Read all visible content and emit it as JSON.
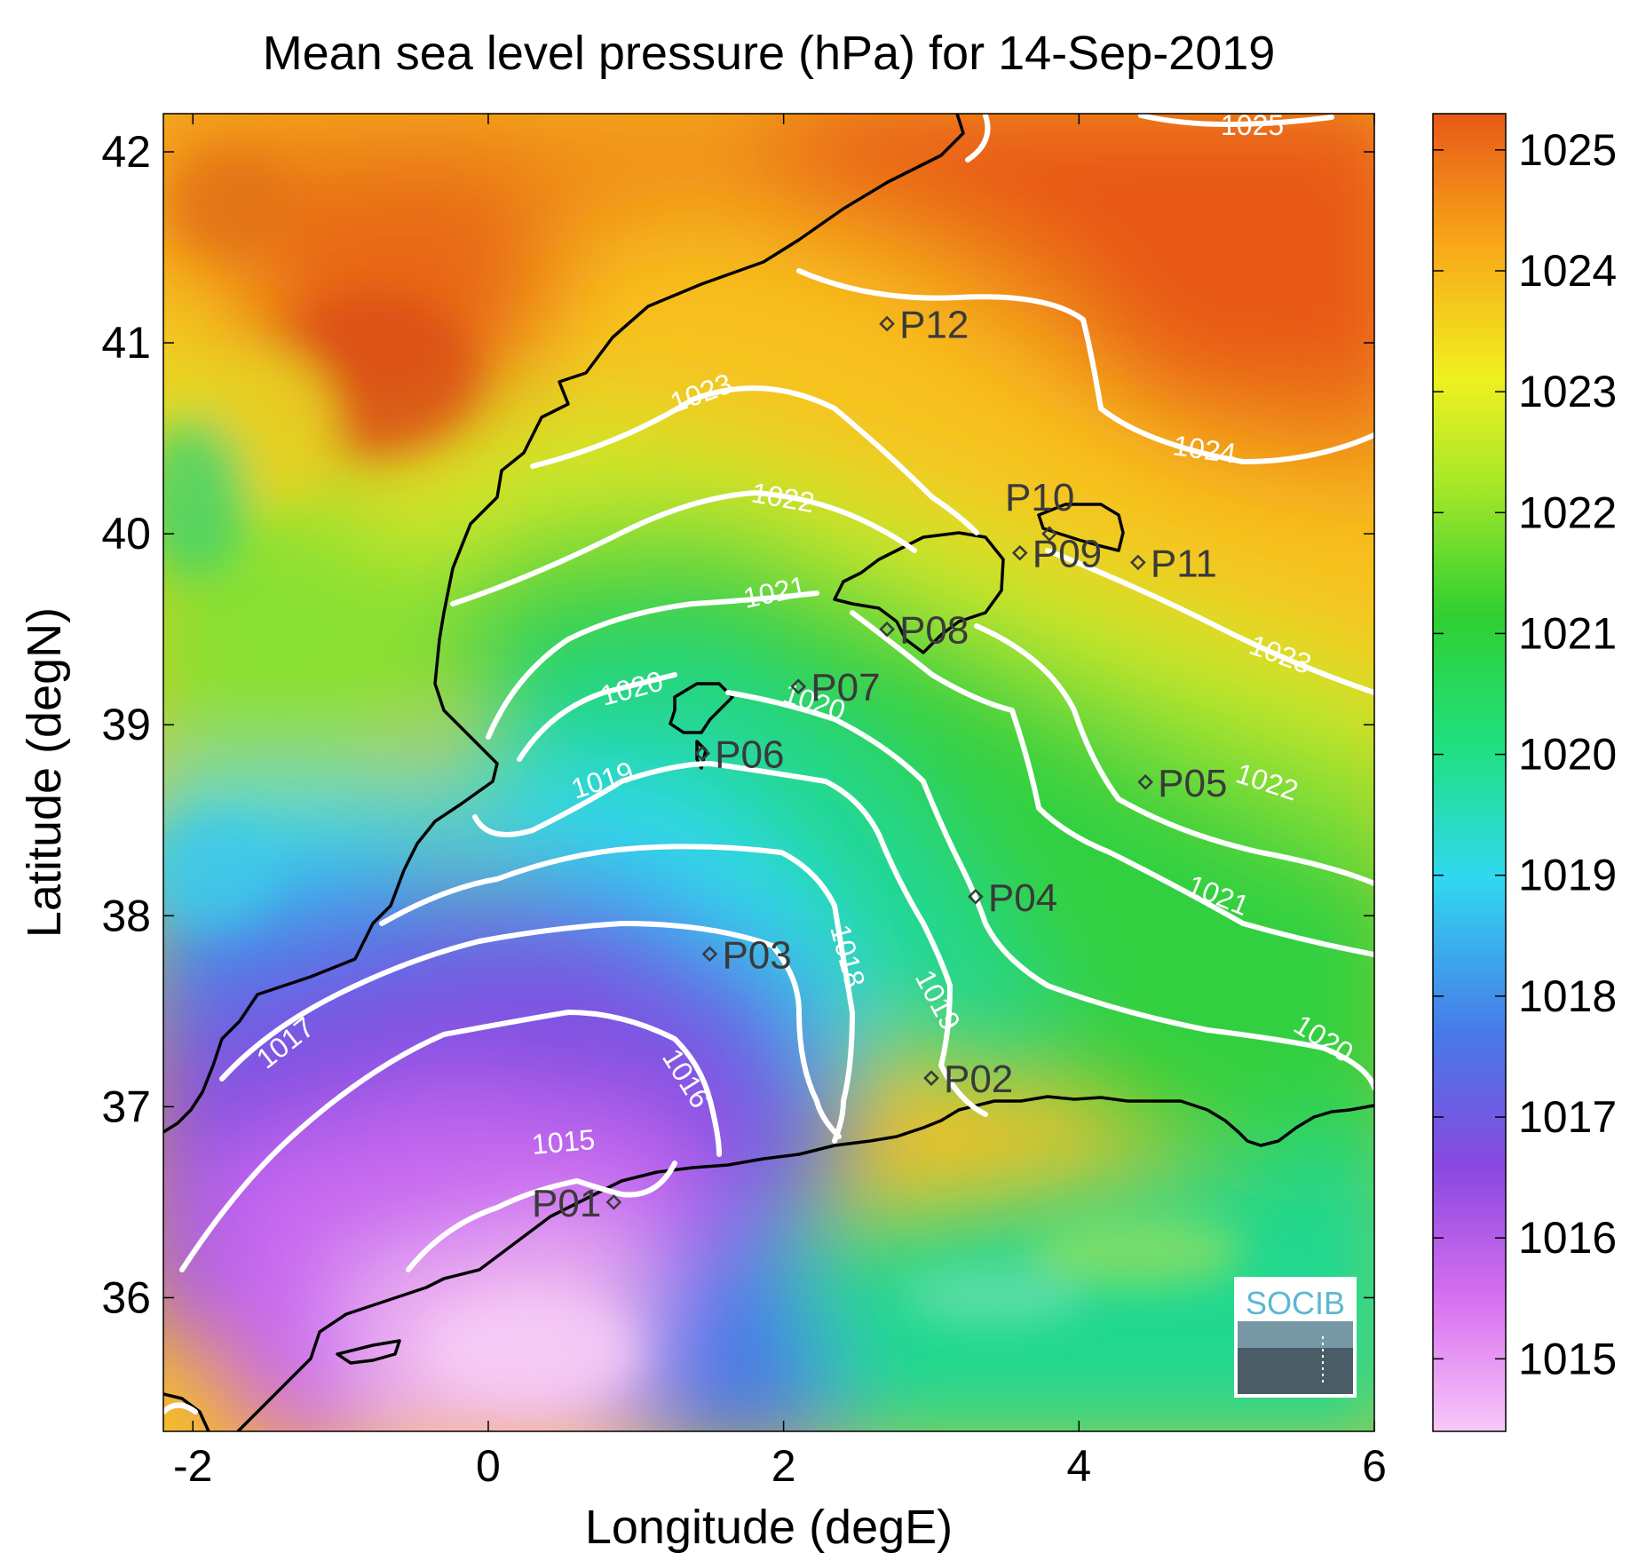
{
  "title": "Mean sea level pressure (hPa) for 14-Sep-2019",
  "xlabel": "Longitude (degE)",
  "ylabel": "Latitude (degN)",
  "x_ticks": [
    "-2",
    "0",
    "2",
    "4",
    "6"
  ],
  "y_ticks": [
    "42",
    "41",
    "40",
    "39",
    "38",
    "37",
    "36"
  ],
  "colorbar_ticks": [
    "1025",
    "1024",
    "1023",
    "1022",
    "1021",
    "1020",
    "1019",
    "1018",
    "1017",
    "1016",
    "1015"
  ],
  "logo_text": "SOCIB",
  "colors": {
    "contour": "#ffffff",
    "coast": "#000000",
    "station": "#3a3a3a"
  },
  "chart_data": {
    "type": "heatmap",
    "title": "Mean sea level pressure (hPa) for 14-Sep-2019",
    "xlabel": "Longitude (degE)",
    "ylabel": "Latitude (degN)",
    "xlim": [
      -2.2,
      6.0
    ],
    "ylim": [
      35.3,
      42.2
    ],
    "colorbar_range": [
      1014.4,
      1025.3
    ],
    "colormap": [
      "#f8c8f8",
      "#d870f0",
      "#8a48e0",
      "#4878e8",
      "#30d8f0",
      "#20e080",
      "#30d030",
      "#a8e828",
      "#f0f020",
      "#f8a818",
      "#e85818"
    ],
    "contour_levels": [
      1015,
      1016,
      1017,
      1018,
      1019,
      1020,
      1021,
      1022,
      1023,
      1024,
      1025
    ],
    "stations": [
      {
        "name": "P01",
        "lon": 0.85,
        "lat": 36.5
      },
      {
        "name": "P02",
        "lon": 3.0,
        "lat": 37.15
      },
      {
        "name": "P03",
        "lon": 1.5,
        "lat": 37.8
      },
      {
        "name": "P04",
        "lon": 3.3,
        "lat": 38.1
      },
      {
        "name": "P05",
        "lon": 4.45,
        "lat": 38.7
      },
      {
        "name": "P06",
        "lon": 1.45,
        "lat": 38.85
      },
      {
        "name": "P07",
        "lon": 2.1,
        "lat": 39.2
      },
      {
        "name": "P08",
        "lon": 2.7,
        "lat": 39.5
      },
      {
        "name": "P09",
        "lon": 3.6,
        "lat": 39.9
      },
      {
        "name": "P10",
        "lon": 3.8,
        "lat": 40.0
      },
      {
        "name": "P11",
        "lon": 4.4,
        "lat": 39.85
      },
      {
        "name": "P12",
        "lon": 2.7,
        "lat": 41.1
      }
    ]
  }
}
